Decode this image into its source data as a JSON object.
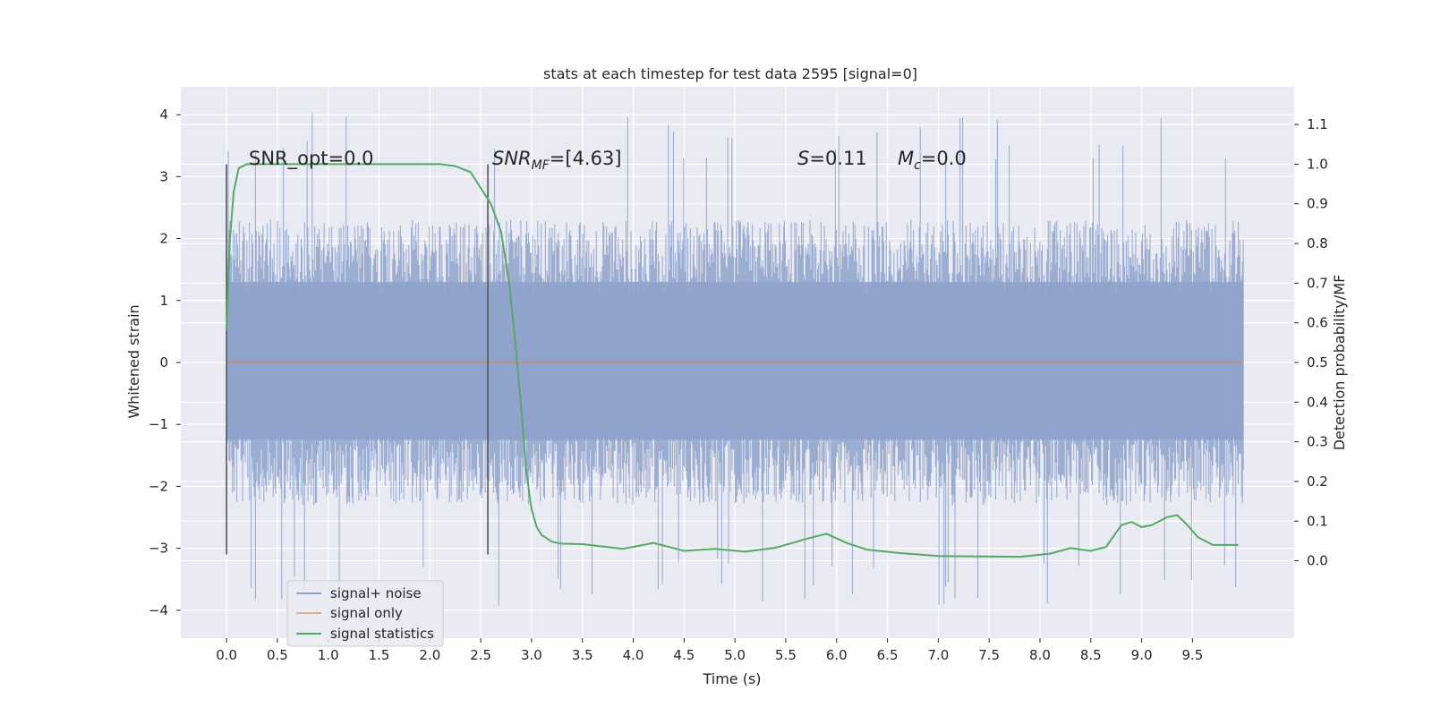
{
  "chart_data": {
    "type": "line",
    "title": "stats at each timestep for test data 2595 [signal=0]",
    "xlabel": "Time (s)",
    "ylabel": "Whitened strain",
    "y2label": "Detection probability/MF",
    "xlim": [
      -0.45,
      10.5
    ],
    "ylim": [
      -4.45,
      4.45
    ],
    "y2lim": [
      -0.195,
      1.195
    ],
    "xticks": [
      0.0,
      0.5,
      1.0,
      1.5,
      2.0,
      2.5,
      3.0,
      3.5,
      4.0,
      4.5,
      5.0,
      5.5,
      6.0,
      6.5,
      7.0,
      7.5,
      8.0,
      8.5,
      9.0,
      9.5
    ],
    "xtick_labels": [
      "0.0",
      "0.5",
      "1.0",
      "1.5",
      "2.0",
      "2.5",
      "3.0",
      "3.5",
      "4.0",
      "4.5",
      "5.0",
      "5.5",
      "6.0",
      "6.5",
      "7.0",
      "7.5",
      "8.0",
      "8.5",
      "9.0",
      "9.5"
    ],
    "yticks": [
      -4,
      -3,
      -2,
      -1,
      0,
      1,
      2,
      3,
      4
    ],
    "ytick_labels": [
      "−4",
      "−3",
      "−2",
      "−1",
      "0",
      "1",
      "2",
      "3",
      "4"
    ],
    "y2ticks": [
      0.0,
      0.1,
      0.2,
      0.3,
      0.4,
      0.5,
      0.6,
      0.7,
      0.8,
      0.9,
      1.0,
      1.1
    ],
    "y2tick_labels": [
      "0.0",
      "0.1",
      "0.2",
      "0.3",
      "0.4",
      "0.5",
      "0.6",
      "0.7",
      "0.8",
      "0.9",
      "1.0",
      "1.1"
    ],
    "grid": true,
    "legend_position": "lower-left",
    "annotations": {
      "snr_opt": "SNR_opt=0.0",
      "snr_mf_main": "SNR",
      "snr_mf_sub": "MF",
      "snr_mf_value": "=[4.63]",
      "s_main": "S",
      "s_value": "=0.11",
      "mc_main": "M",
      "mc_sub": "c",
      "mc_value": "=0.0"
    },
    "vertical_lines": [
      {
        "x": 0.0,
        "ymin": -3.1,
        "ymax": 3.2
      },
      {
        "x": 2.57,
        "ymin": -3.1,
        "ymax": 3.2
      }
    ],
    "noise_envelope": {
      "core_low": -1.25,
      "core_high": 1.3,
      "typical_amplitude": 2.0,
      "max": 4.05,
      "min": -3.95,
      "sample_count": 1200,
      "t_start": 0.0,
      "t_end": 10.0
    },
    "series": [
      {
        "name": "signal+ noise",
        "color": "#8ea2cc",
        "axis": "left",
        "style": "noise",
        "x": [
          0.0,
          10.0
        ],
        "y": [
          0.0,
          0.0
        ]
      },
      {
        "name": "signal only",
        "color": "#dd8452",
        "axis": "left",
        "x": [
          0.0,
          10.0
        ],
        "y": [
          0.0,
          0.0
        ]
      },
      {
        "name": "signal statistics",
        "color": "#55a868",
        "axis": "right",
        "x": [
          0.0,
          0.03,
          0.07,
          0.12,
          0.2,
          0.3,
          0.5,
          1.0,
          1.5,
          1.9,
          2.1,
          2.25,
          2.4,
          2.5,
          2.6,
          2.7,
          2.78,
          2.84,
          2.9,
          2.95,
          3.0,
          3.05,
          3.1,
          3.2,
          3.3,
          3.5,
          3.7,
          3.9,
          4.2,
          4.5,
          4.8,
          5.1,
          5.4,
          5.7,
          5.9,
          6.1,
          6.3,
          6.6,
          7.0,
          7.4,
          7.8,
          8.1,
          8.3,
          8.5,
          8.65,
          8.8,
          8.9,
          9.0,
          9.1,
          9.25,
          9.35,
          9.45,
          9.55,
          9.7,
          9.85,
          9.95
        ],
        "y": [
          0.58,
          0.8,
          0.93,
          0.99,
          1.0,
          1.0,
          1.0,
          1.0,
          1.0,
          1.0,
          1.0,
          0.995,
          0.98,
          0.94,
          0.9,
          0.83,
          0.7,
          0.55,
          0.38,
          0.22,
          0.13,
          0.085,
          0.065,
          0.048,
          0.043,
          0.042,
          0.036,
          0.03,
          0.045,
          0.025,
          0.03,
          0.023,
          0.033,
          0.055,
          0.068,
          0.045,
          0.028,
          0.02,
          0.012,
          0.011,
          0.01,
          0.018,
          0.032,
          0.025,
          0.035,
          0.09,
          0.098,
          0.085,
          0.09,
          0.11,
          0.115,
          0.09,
          0.06,
          0.04,
          0.04,
          0.04
        ]
      }
    ]
  }
}
